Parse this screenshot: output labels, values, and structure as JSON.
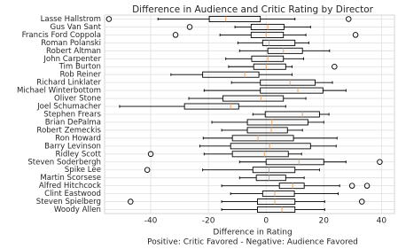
{
  "chart_data": {
    "type": "box",
    "orientation": "horizontal",
    "title": "Difference in Audience and Critic Rating by Director",
    "xlabel": [
      "Difference in Rating",
      "Positive: Critic Favored - Negative: Audience Favored"
    ],
    "categories": [
      "Lasse Hallstrom",
      "Gus Van Sant",
      "Francis Ford Coppola",
      "Roman Polanski",
      "Robert Altman",
      "John Carpenter",
      "Tim Burton",
      "Rob Reiner",
      "Richard Linklater",
      "Michael Winterbottom",
      "Oliver Stone",
      "Joel Schumacher",
      "Stephen Frears",
      "Brian DePalma",
      "Robert Zemeckis",
      "Ron Howard",
      "Barry Levinson",
      "Ridley Scott",
      "Steven Soderbergh",
      "Spike Lee",
      "Martin Scorsese",
      "Alfred Hitchcock",
      "Clint Eastwood",
      "Steven Spielberg",
      "Woody Allen"
    ],
    "stats": [
      {
        "whislo": -37.5,
        "q1": -19.7,
        "med": -14,
        "q3": -2,
        "whishi": 10,
        "fliers": [
          -54.5,
          28.6
        ]
      },
      {
        "whislo": -10.8,
        "q1": -5.2,
        "med": 0.6,
        "q3": 6.2,
        "whishi": 15.4,
        "fliers": [
          -26.5
        ]
      },
      {
        "whislo": -16,
        "q1": -5.2,
        "med": 0,
        "q3": 6,
        "whishi": 13.8,
        "fliers": [
          -31.4,
          31
        ]
      },
      {
        "whislo": -9.8,
        "q1": -1.2,
        "med": 1,
        "q3": 10,
        "whishi": 14.8,
        "fliers": []
      },
      {
        "whislo": -9.2,
        "q1": 0.6,
        "med": 6,
        "q3": 12.6,
        "whishi": 22,
        "fliers": []
      },
      {
        "whislo": -14,
        "q1": -5,
        "med": 0.6,
        "q3": 6,
        "whishi": 13,
        "fliers": []
      },
      {
        "whislo": -13,
        "q1": -4.3,
        "med": 0,
        "q3": 6.8,
        "whishi": 9,
        "fliers": [
          23.7
        ]
      },
      {
        "whislo": -33,
        "q1": -22,
        "med": -7.4,
        "q3": -2.5,
        "whishi": 9,
        "fliers": []
      },
      {
        "whislo": -12,
        "q1": -2,
        "med": 8.3,
        "q3": 17,
        "whishi": 23,
        "fliers": []
      },
      {
        "whislo": -21.5,
        "q1": -2,
        "med": 11,
        "q3": 19.7,
        "whishi": 27.7,
        "fliers": []
      },
      {
        "whislo": -26.8,
        "q1": -15,
        "med": -1.8,
        "q3": 6,
        "whishi": 13.8,
        "fliers": []
      },
      {
        "whislo": -50.8,
        "q1": -28.3,
        "med": -12.3,
        "q3": -9.5,
        "whishi": 6.8,
        "fliers": []
      },
      {
        "whislo": -4.6,
        "q1": -0.3,
        "med": 12.6,
        "q3": 18.5,
        "whishi": 21.8,
        "fliers": []
      },
      {
        "whislo": -18.8,
        "q1": -6.5,
        "med": 2,
        "q3": 14.5,
        "whishi": 20,
        "fliers": []
      },
      {
        "whislo": -15.4,
        "q1": -6.5,
        "med": 1.8,
        "q3": 7.4,
        "whishi": 12.6,
        "fliers": []
      },
      {
        "whislo": -21.8,
        "q1": -11.7,
        "med": -2.8,
        "q3": 9.5,
        "whishi": 24.6,
        "fliers": []
      },
      {
        "whislo": -23,
        "q1": -12.3,
        "med": 1.2,
        "q3": 15.4,
        "whishi": 24.3,
        "fliers": []
      },
      {
        "whislo": -21.5,
        "q1": -11.7,
        "med": -0.6,
        "q3": 7.7,
        "whishi": 12.3,
        "fliers": [
          -40
        ]
      },
      {
        "whislo": -9.2,
        "q1": 0,
        "med": 11.4,
        "q3": 20,
        "whishi": 27.7,
        "fliers": [
          39.4
        ]
      },
      {
        "whislo": -22,
        "q1": -4.6,
        "med": 1,
        "q3": 10,
        "whishi": 18.5,
        "fliers": [
          -41.2
        ]
      },
      {
        "whislo": -9.2,
        "q1": -3.4,
        "med": 1,
        "q3": 6.8,
        "whishi": 13.2,
        "fliers": []
      },
      {
        "whislo": -15.4,
        "q1": 4.6,
        "med": 9.2,
        "q3": 13.2,
        "whishi": 25.5,
        "fliers": [
          29.8,
          35
        ]
      },
      {
        "whislo": -12.3,
        "q1": -1.2,
        "med": 3,
        "q3": 9.8,
        "whishi": 25,
        "fliers": []
      },
      {
        "whislo": -15.4,
        "q1": -3,
        "med": 3,
        "q3": 10,
        "whishi": 20.3,
        "fliers": [
          -47,
          33.2
        ]
      },
      {
        "whislo": -15.4,
        "q1": -3,
        "med": 5.5,
        "q3": 10,
        "whishi": 20.3,
        "fliers": []
      }
    ],
    "xlim": [
      -56,
      44.5
    ],
    "xticks": [
      -40,
      -20,
      0,
      20,
      40
    ],
    "grid": true,
    "box_color": "#000000",
    "median_color": "#e8a46a"
  }
}
